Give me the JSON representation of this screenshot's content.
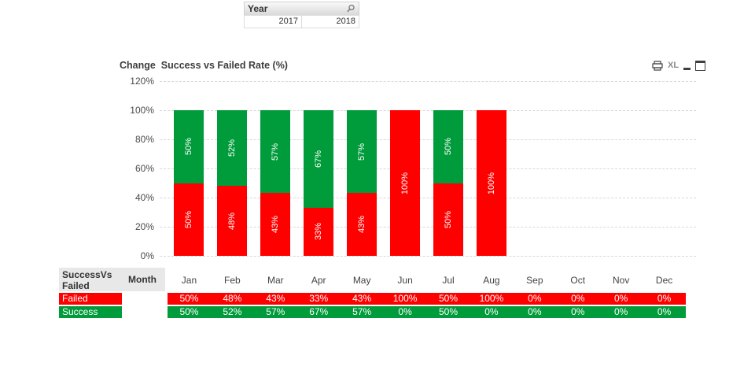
{
  "year_filter": {
    "title": "Year",
    "values": [
      "2017",
      "2018"
    ]
  },
  "chart": {
    "title": "Change  Success vs Failed Rate (%)",
    "icons": {
      "excel_label": "XL"
    },
    "y_axis": {
      "ticks": [
        "120%",
        "100%",
        "80%",
        "60%",
        "40%",
        "20%",
        "0%"
      ]
    }
  },
  "chart_data": {
    "type": "bar",
    "stacked": true,
    "title": "Change  Success vs Failed Rate (%)",
    "categories": [
      "Jan",
      "Feb",
      "Mar",
      "Apr",
      "May",
      "Jun",
      "Jul",
      "Aug",
      "Sep",
      "Oct",
      "Nov",
      "Dec"
    ],
    "series": [
      {
        "name": "Failed",
        "color": "#ff0000",
        "values": [
          50,
          48,
          43,
          33,
          43,
          100,
          50,
          100,
          0,
          0,
          0,
          0
        ]
      },
      {
        "name": "Success",
        "color": "#009b3a",
        "values": [
          50,
          52,
          57,
          67,
          57,
          0,
          50,
          0,
          0,
          0,
          0,
          0
        ]
      }
    ],
    "xlabel": "",
    "ylabel": "",
    "ylim": [
      0,
      120
    ],
    "y_tick_labels": [
      "0%",
      "20%",
      "40%",
      "60%",
      "80%",
      "100%",
      "120%"
    ],
    "grid": "horizontal-dashed",
    "legend_position": "none",
    "bar_label_format": "value + % rotated 90deg inside segment"
  },
  "table": {
    "corner_header": "SuccessVs Failed",
    "month_header": "Month",
    "columns": [
      "Jan",
      "Feb",
      "Mar",
      "Apr",
      "May",
      "Jun",
      "Jul",
      "Aug",
      "Sep",
      "Oct",
      "Nov",
      "Dec"
    ],
    "rows": [
      {
        "label": "Failed",
        "color": "#ff0000",
        "values": [
          "50%",
          "48%",
          "43%",
          "33%",
          "43%",
          "100%",
          "50%",
          "100%",
          "0%",
          "0%",
          "0%",
          "0%"
        ]
      },
      {
        "label": "Success",
        "color": "#009b3a",
        "values": [
          "50%",
          "52%",
          "57%",
          "67%",
          "57%",
          "0%",
          "50%",
          "0%",
          "0%",
          "0%",
          "0%",
          "0%"
        ]
      }
    ]
  },
  "colors": {
    "failed": "#ff0000",
    "success": "#009b3a",
    "gridline": "#d8d8d8",
    "header_bg": "#e8e8e8"
  }
}
